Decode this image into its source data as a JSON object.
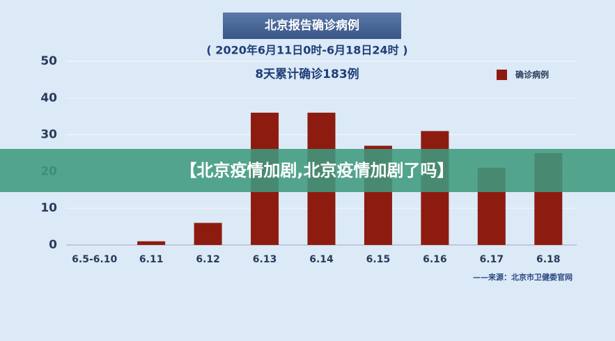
{
  "chart_data": {
    "type": "bar",
    "title": "北京报告确诊病例",
    "subtitle": "( 2020年6月11日0时-6月18日24时 )",
    "annotation": "8天累计确诊183例",
    "source": "——来源：北京市卫健委官网",
    "categories": [
      "6.5-6.10",
      "6.11",
      "6.12",
      "6.13",
      "6.14",
      "6.15",
      "6.16",
      "6.17",
      "6.18"
    ],
    "series": [
      {
        "name": "确诊病例",
        "color": "#8e1b10",
        "values": [
          0,
          1,
          6,
          36,
          36,
          27,
          31,
          21,
          25
        ]
      }
    ],
    "ylim": [
      0,
      50
    ],
    "yticks": [
      0,
      10,
      20,
      30,
      40,
      50
    ],
    "grid": true,
    "legend": "top-right"
  },
  "overlay_text": "【北京疫情加剧,北京疫情加剧了吗】"
}
